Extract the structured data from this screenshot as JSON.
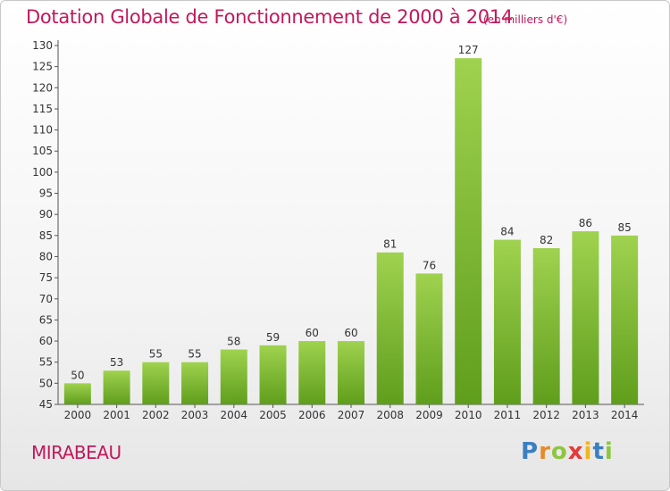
{
  "header": {
    "title": "Dotation Globale de Fonctionnement de 2000 à 2014",
    "unit": "(en milliers d'€)"
  },
  "footer": {
    "commune": "MIRABEAU",
    "logo_letters": [
      "P",
      "r",
      "o",
      "x",
      "i",
      "t",
      "i"
    ],
    "logo_colors": [
      "#3a7fc1",
      "#e8892a",
      "#8dc63f",
      "#e23a3a",
      "#f3b51b",
      "#3a7fc1",
      "#8dc63f"
    ]
  },
  "chart_data": {
    "type": "bar",
    "categories": [
      "2000",
      "2001",
      "2002",
      "2003",
      "2004",
      "2005",
      "2006",
      "2007",
      "2008",
      "2009",
      "2010",
      "2011",
      "2012",
      "2013",
      "2014"
    ],
    "values": [
      50,
      53,
      55,
      55,
      58,
      59,
      60,
      60,
      81,
      76,
      127,
      84,
      82,
      86,
      85
    ],
    "title": "Dotation Globale de Fonctionnement de 2000 à 2014",
    "subtitle": "(en milliers d'€)",
    "ylim": [
      45,
      130
    ],
    "ytick_step": 5,
    "grid": false,
    "bar_color_top": "#9fd24f",
    "bar_color_bottom": "#5f9e1c"
  }
}
